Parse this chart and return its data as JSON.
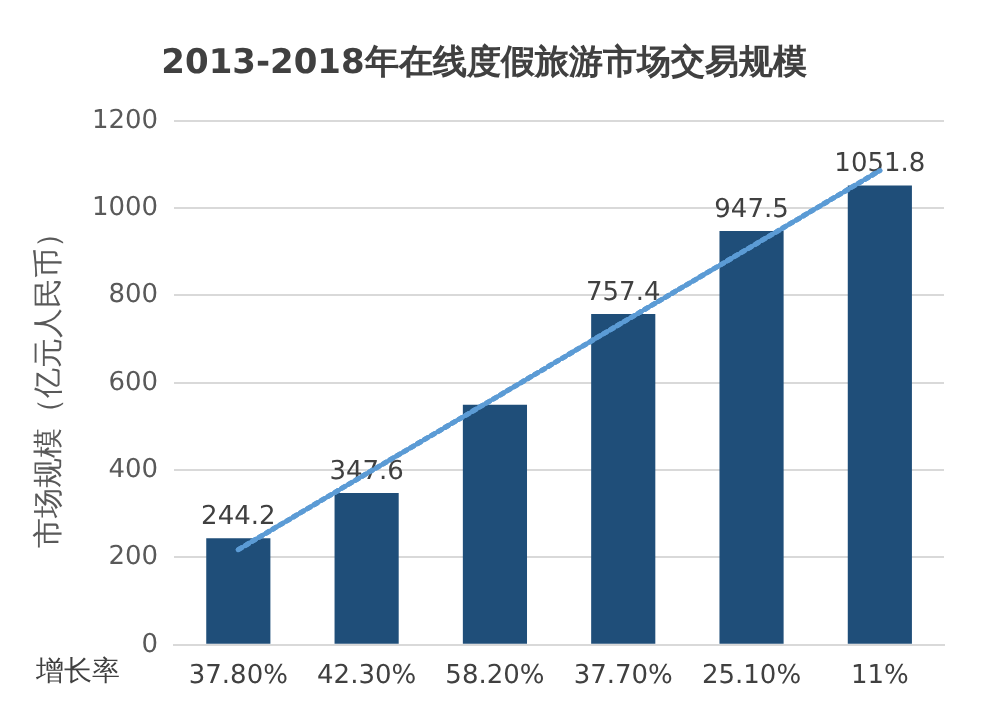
{
  "chart_data": {
    "type": "bar",
    "title": "2013-2018年在线度假旅游市场交易规模",
    "ylabel": "市场规模（亿元人民币）",
    "xlabel": "增长率",
    "categories": [
      "37.80%",
      "42.30%",
      "58.20%",
      "37.70%",
      "25.10%",
      "11%"
    ],
    "series": [
      {
        "color": "#1f4e79",
        "values": [
          244.2,
          347.6,
          550,
          757.4,
          947.5,
          1051.8
        ],
        "value_labels": [
          "244.2",
          "347.6",
          null,
          "757.4",
          "947.5",
          "1051.8"
        ]
      },
      {
        "type": "line",
        "color": "#5b9bd5",
        "line_style": "dotted",
        "marker": "none",
        "x": [
          "37.80%",
          "42.30%",
          "58.20%",
          "37.70%",
          "25.10%",
          "11%"
        ],
        "values": [
          218,
          392,
          565,
          739,
          912,
          1086
        ]
      }
    ],
    "ylim": [
      0,
      1200
    ],
    "yticks": [
      0,
      200,
      400,
      600,
      800,
      1000,
      1200
    ],
    "grid": "y",
    "legend": false
  }
}
